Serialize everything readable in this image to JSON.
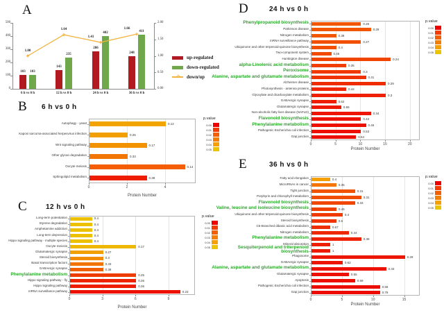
{
  "panelA_legend": {
    "up": "up-regulated",
    "down": "down-regulated",
    "ratio": "down/up"
  },
  "legend_pvalue": {
    "title": "p.value",
    "labels": [
      "0.00",
      "0.01",
      "0.02",
      "0.03",
      "0.04",
      "0.05"
    ],
    "colors": [
      "#EE0000",
      "#F23C00",
      "#F35E00",
      "#F47E00",
      "#F5A000",
      "#EDC400"
    ]
  },
  "colors": {
    "up_bar": "#B11A20",
    "down_bar": "#6FA84B",
    "ratio_line": "#F3B33C",
    "highlight_green": "#2CA62C"
  },
  "chart_data": [
    {
      "id": "A",
      "letter": "A",
      "type": "bar",
      "categories": [
        "6 h vs 0 h",
        "12 h vs 0 h",
        "24 h vs 0 h",
        "36 h vs 0 h"
      ],
      "series": [
        {
          "name": "up-regulated",
          "type": "bar",
          "color": "#B11A20",
          "values": [
            103,
            143,
            286,
            248
          ]
        },
        {
          "name": "down-regulated",
          "type": "bar",
          "color": "#6FA84B",
          "values": [
            103,
            235,
            402,
            411
          ]
        },
        {
          "name": "down/up",
          "type": "line",
          "color": "#F3B33C",
          "values": [
            1.0,
            1.64,
            1.41,
            1.66
          ],
          "value_labels": [
            "1.00",
            "1.64",
            "1.41",
            "1.66"
          ]
        }
      ],
      "ylim": [
        0,
        500
      ],
      "yticks": [
        0,
        100,
        200,
        300,
        400,
        500
      ],
      "y2lim": [
        0,
        2
      ],
      "y2ticks": [
        "0.00",
        "0.50",
        "1.00",
        "1.50",
        "2.00"
      ]
    },
    {
      "id": "B",
      "letter": "B",
      "type": "bar",
      "orientation": "horizontal",
      "title": "6 h vs 0 h",
      "xlabel": "Protein Number",
      "xlim": [
        0,
        5.6
      ],
      "xticks": [
        0,
        2,
        4
      ],
      "rows": [
        {
          "label": "Autophagy - yeast",
          "value": 4,
          "p": "0.12",
          "color": "#F2A400"
        },
        {
          "label": "Kaposi sarcoma-associated herpesvirus infection",
          "value": 2,
          "p": "0.25",
          "color": "#F2A000"
        },
        {
          "label": "Wnt signaling pathway",
          "value": 3,
          "p": "0.17",
          "color": "#F39200"
        },
        {
          "label": "Other glycan degradation",
          "value": 2,
          "p": "0.33",
          "color": "#F27500"
        },
        {
          "label": "Oocyte meiosis",
          "value": 5,
          "p": "0.14",
          "color": "#F55E00"
        },
        {
          "label": "Sphingolipid metabolism",
          "value": 3,
          "p": "0.38",
          "color": "#EE1C00"
        }
      ]
    },
    {
      "id": "C",
      "letter": "C",
      "type": "bar",
      "orientation": "horizontal",
      "title": "12 h vs 0 h",
      "xlabel": "Protein Number",
      "xlim": [
        0,
        11.4
      ],
      "xticks": [
        0,
        3,
        6,
        9
      ],
      "rows": [
        {
          "label": "Long-term potentiation",
          "value": 2,
          "p": "0.4",
          "color": "#EDC100"
        },
        {
          "label": "Styrene degradation",
          "value": 2,
          "p": "0.4",
          "color": "#EDC100"
        },
        {
          "label": "Amphetamine addiction",
          "value": 2,
          "p": "0.4",
          "color": "#EDC100"
        },
        {
          "label": "Long-term depression",
          "value": 2,
          "p": "0.4",
          "color": "#EDC100"
        },
        {
          "label": "Hippo signaling pathway - multiple species",
          "value": 2,
          "p": "0.4",
          "color": "#EDC100"
        },
        {
          "label": "Oocyte meiosis",
          "value": 6,
          "p": "0.17",
          "color": "#EFB800"
        },
        {
          "label": "Glutamatergic synapse",
          "value": 3,
          "p": "0.27",
          "color": "#F2A000"
        },
        {
          "label": "Steroid biosynthesis",
          "value": 3,
          "p": "0.3",
          "color": "#F28C00"
        },
        {
          "label": "Basal transcription factors",
          "value": 3,
          "p": "0.33",
          "color": "#F17500"
        },
        {
          "label": "GABAergic synapse",
          "value": 3,
          "p": "0.38",
          "color": "#F06000"
        },
        {
          "label": "Phenylalanine metabolism",
          "value": 6,
          "p": "0.25",
          "color": "#EF3A00",
          "green": true
        },
        {
          "label": "Hippo signaling pathway - fly",
          "value": 6,
          "p": "0.26",
          "color": "#EE2400"
        },
        {
          "label": "Hippo signaling pathway",
          "value": 6,
          "p": "0.26",
          "color": "#EE1C00"
        },
        {
          "label": "mRNA surveillance pathway",
          "value": 10,
          "p": "0.23",
          "color": "#ED1200"
        }
      ]
    },
    {
      "id": "D",
      "letter": "D",
      "type": "bar",
      "orientation": "horizontal",
      "title": "24 h vs 0 h",
      "xlabel": "Protein Number",
      "xlim": [
        0,
        22
      ],
      "xticks": [
        0,
        5,
        10,
        15,
        20
      ],
      "rows": [
        {
          "label": "Phenylpropanoid biosynthesis",
          "value": 10,
          "p": "0.26",
          "color": "#F25600",
          "green": true
        },
        {
          "label": "Parkinson disease",
          "value": 12,
          "p": "0.29",
          "color": "#F25600"
        },
        {
          "label": "Nitrogen metabolism",
          "value": 5,
          "p": "0.38",
          "color": "#F25600"
        },
        {
          "label": "mRNA surveillance pathway",
          "value": 10,
          "p": "0.27",
          "color": "#F25000"
        },
        {
          "label": "Ubiquinone and other terpenoid-quinone biosynthesis",
          "value": 5,
          "p": "0.4",
          "color": "#F25000"
        },
        {
          "label": "Two-component system",
          "value": 4,
          "p": "0.45",
          "color": "#F24A00"
        },
        {
          "label": "Huntington disease",
          "value": 16,
          "p": "0.24",
          "color": "#F14400"
        },
        {
          "label": "alpha-Linolenic acid metabolism",
          "value": 7,
          "p": "0.35",
          "color": "#F13E00",
          "green": true
        },
        {
          "label": "Peroxisome",
          "value": 10,
          "p": "0.3",
          "color": "#F03800",
          "green": true
        },
        {
          "label": "Alanine, aspartate and glutamate metabolism",
          "value": 11,
          "p": "0.31",
          "color": "#F03200",
          "green": true
        },
        {
          "label": "Alzheimer disease",
          "value": 15,
          "p": "0.29",
          "color": "#EF2C00"
        },
        {
          "label": "Photosynthesis - antenna proteins",
          "value": 7,
          "p": "0.44",
          "color": "#EF2600"
        },
        {
          "label": "Glyoxylate and dicarboxylate metabolism",
          "value": 15,
          "p": "0.3",
          "color": "#EE2000"
        },
        {
          "label": "GABAergic synapse",
          "value": 5,
          "p": "0.62",
          "color": "#EE1C00"
        },
        {
          "label": "Glutamatergic synapse",
          "value": 6,
          "p": "0.55",
          "color": "#EE1800"
        },
        {
          "label": "Non-alcoholic fatty liver disease (NAFLD)",
          "value": 12,
          "p": "0.34",
          "color": "#ED1400"
        },
        {
          "label": "Flavonoid biosynthesis",
          "value": 10,
          "p": "0.42",
          "color": "#ED1200",
          "green": true
        },
        {
          "label": "Phenylalanine metabolism",
          "value": 11,
          "p": "0.45",
          "color": "#ED1000",
          "green": true
        },
        {
          "label": "Pathogenic Escherichia coli infection",
          "value": 10,
          "p": "0.53",
          "color": "#ED0E00"
        },
        {
          "label": "Gap junction",
          "value": 9,
          "p": "0.54",
          "color": "#ED0C00"
        }
      ]
    },
    {
      "id": "E",
      "letter": "E",
      "type": "bar",
      "orientation": "horizontal",
      "title": "36 h vs 0 h",
      "xlabel": "Protein Number",
      "xlim": [
        0,
        17.5
      ],
      "xticks": [
        0,
        5,
        10,
        15
      ],
      "rows": [
        {
          "label": "Fatty acid elongation",
          "value": 3,
          "p": "0.4",
          "color": "#F5A000"
        },
        {
          "label": "MicroRNAs in cancer",
          "value": 4,
          "p": "0.35",
          "color": "#F57600"
        },
        {
          "label": "Tight junction",
          "value": 7,
          "p": "0.31",
          "color": "#F15200"
        },
        {
          "label": "Porphyrin and chlorophyll metabolism",
          "value": 8,
          "p": "0.31",
          "color": "#F14C00"
        },
        {
          "label": "Flavonoid biosynthesis",
          "value": 7,
          "p": "0.33",
          "color": "#F14600",
          "green": true
        },
        {
          "label": "Valine, leucine and isoleucine biosynthesis",
          "value": 4,
          "p": "0.45",
          "color": "#F04000",
          "green": true
        },
        {
          "label": "Ubiquinone and other terpenoid-quinone biosynthesis",
          "value": 5,
          "p": "0.4",
          "color": "#F03A00"
        },
        {
          "label": "Steroid biosynthesis",
          "value": 4,
          "p": "0.5",
          "color": "#EF3400"
        },
        {
          "label": "C5-Branched dibasic acid metabolism",
          "value": 3,
          "p": "0.67",
          "color": "#EF2E00"
        },
        {
          "label": "Nitrogen metabolism",
          "value": 6,
          "p": "0.44",
          "color": "#EE2800"
        },
        {
          "label": "Phenylalanine metabolism",
          "value": 8,
          "p": "0.38",
          "color": "#EE2200",
          "green": true
        },
        {
          "label": "Mineral absorption",
          "value": 3,
          "p": "1",
          "color": "#EE1E00"
        },
        {
          "label": "Sesquiterpenoid and triterpenoid biosynthesis",
          "value": 3,
          "p": "1",
          "color": "#ED1A00",
          "green": true,
          "wrap": true
        },
        {
          "label": "Phagosome",
          "value": 15,
          "p": "0.29",
          "color": "#ED1600"
        },
        {
          "label": "GABAergic synapse",
          "value": 5,
          "p": "0.62",
          "color": "#ED1400"
        },
        {
          "label": "Alanine, aspartate and glutamate metabolism",
          "value": 12,
          "p": "0.33",
          "color": "#ED1200",
          "green": true
        },
        {
          "label": "Glutamatergic synapse",
          "value": 6,
          "p": "0.55",
          "color": "#ED1000"
        },
        {
          "label": "Apoptosis",
          "value": 7,
          "p": "0.59",
          "color": "#ED0E00"
        },
        {
          "label": "Pathogenic Escherichia coli infection",
          "value": 11,
          "p": "0.58",
          "color": "#ED0C00"
        },
        {
          "label": "Gap junction",
          "value": 11,
          "p": "0.79",
          "color": "#ED0A00"
        }
      ]
    }
  ]
}
